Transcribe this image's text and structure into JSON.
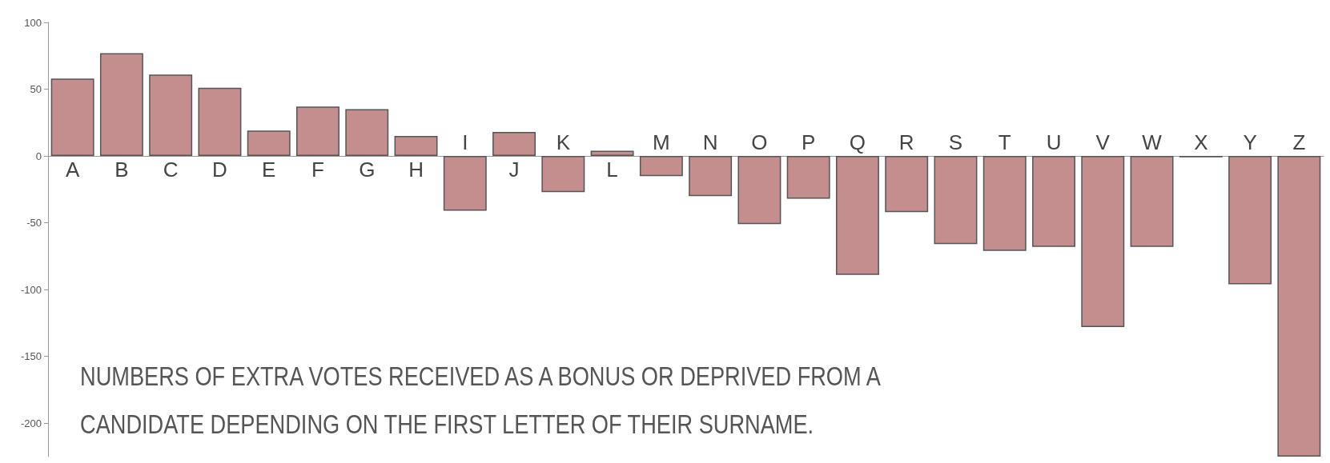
{
  "chart_data": {
    "type": "bar",
    "categories": [
      "A",
      "B",
      "C",
      "D",
      "E",
      "F",
      "G",
      "H",
      "I",
      "J",
      "K",
      "L",
      "M",
      "N",
      "O",
      "P",
      "Q",
      "R",
      "S",
      "T",
      "U",
      "V",
      "W",
      "X",
      "Y",
      "Z"
    ],
    "values": [
      58,
      77,
      61,
      51,
      19,
      37,
      35,
      15,
      -41,
      18,
      -27,
      4,
      -15,
      -30,
      -51,
      -32,
      -89,
      -42,
      -66,
      -71,
      -68,
      -128,
      -68,
      -1,
      -96,
      -225
    ],
    "color": "#c48e8e",
    "ylim": [
      -225,
      100
    ],
    "yticks": [
      100,
      50,
      0,
      -50,
      -100,
      -150,
      -200
    ],
    "grid": false,
    "annotations": [
      "NUMBERS OF EXTRA VOTES RECEIVED AS A BONUS OR DEPRIVED FROM A CANDIDATE DEPENDING ON THE FIRST LETTER OF THEIR SURNAME."
    ]
  }
}
